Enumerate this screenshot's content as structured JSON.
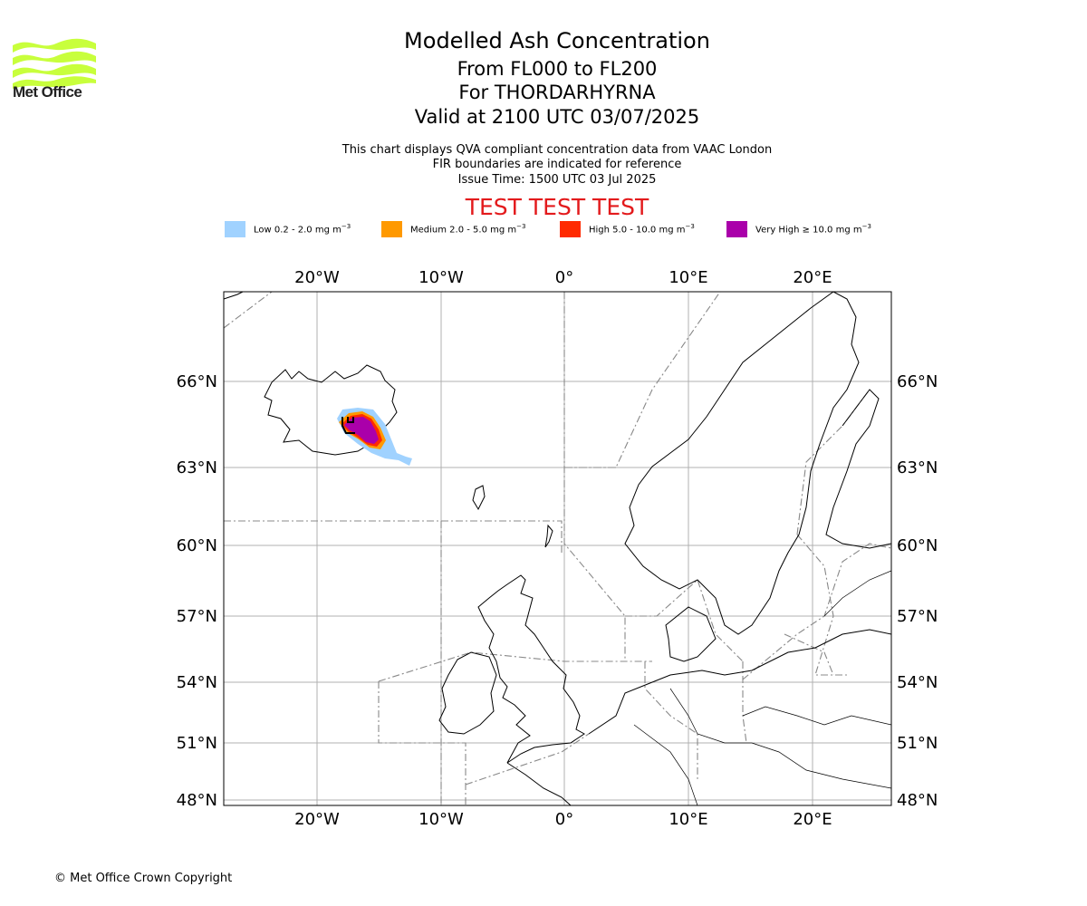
{
  "logo": {
    "text": "Met Office",
    "color": "#c8ff3c"
  },
  "titles": {
    "main": "Modelled Ash Concentration",
    "levels": "From FL000 to FL200",
    "volcano": "For THORDARHYRNA",
    "valid": "Valid at 2100 UTC 03/07/2025"
  },
  "subtitles": {
    "line1": "This chart displays QVA compliant concentration data from VAAC London",
    "line2": "FIR boundaries are indicated for reference",
    "line3": "Issue Time: 1500 UTC 03 Jul 2025"
  },
  "test_banner": "TEST TEST TEST",
  "legend": [
    {
      "label": "Low 0.2 - 2.0 mg m",
      "color": "#a0d2ff"
    },
    {
      "label": "Medium 2.0 - 5.0 mg m",
      "color": "#ff9900"
    },
    {
      "label": "High 5.0 - 10.0 mg m",
      "color": "#ff2a00"
    },
    {
      "label": "Very High ≥ 10.0 mg m",
      "color": "#aa00aa"
    }
  ],
  "legend_unit_exp": "−3",
  "map": {
    "lon_ticks": [
      "20°W",
      "10°W",
      "0°",
      "10°E",
      "20°E"
    ],
    "lat_ticks": [
      "66°N",
      "63°N",
      "60°N",
      "57°N",
      "54°N",
      "51°N",
      "48°N"
    ]
  },
  "copyright": "© Met Office Crown Copyright"
}
